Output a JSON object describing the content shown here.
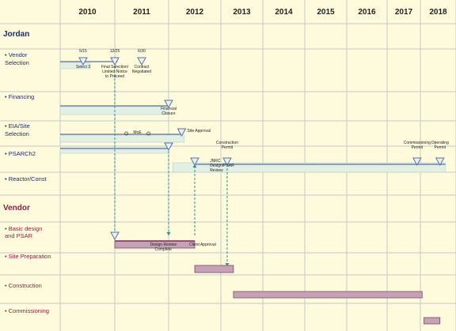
{
  "chart_data": {
    "type": "gantt",
    "title": "",
    "years": [
      "2010",
      "2011",
      "2012",
      "2013",
      "2014",
      "2015",
      "2016",
      "2017",
      "2018"
    ],
    "x_range": [
      2009.0,
      2018.7
    ],
    "colors": {
      "background": "#fdfbdc",
      "grid": "#c8c8c8",
      "jordan_section": "#1f2a6b",
      "vendor_section": "#8b2046",
      "jordan_bar_fill": "#e2f0e4",
      "milestone_line": "#5a6fa8",
      "vendor_bar_fill": "#c7a2b7",
      "dashed_link": "#2f8f8f"
    },
    "sections": [
      {
        "name": "Jordan",
        "rows": [
          {
            "label": [
              "• Vendor",
              "Selection"
            ],
            "bars": [
              {
                "start": 2009.0,
                "end": 2010.55
              }
            ],
            "line": {
              "start": 2009.0,
              "end": 2011.05
            },
            "milestones": [
              {
                "x": 2010.42,
                "above": [
                  "5/15"
                ],
                "below": [
                  "Select 3"
                ]
              },
              {
                "x": 2011.0,
                "above": [
                  "12/25"
                ],
                "below": [
                  "Final Selection/",
                  "Limited Notice",
                  "to Proceed"
                ]
              },
              {
                "x": 2011.5,
                "above": [
                  "6/30"
                ],
                "below": [
                  "Contract",
                  "Negotiated"
                ]
              }
            ]
          },
          {
            "label": [
              "• Financing"
            ],
            "bars": [
              {
                "start": 2009.0,
                "end": 2012.0
              }
            ],
            "line": {
              "start": 2009.0,
              "end": 2012.0
            },
            "milestones": [
              {
                "x": 2012.0,
                "above": [],
                "below": [
                  "Financial",
                  "Closure"
                ]
              }
            ]
          },
          {
            "label": [
              "• EIA/Site",
              "Selection"
            ],
            "bars": [
              {
                "start": 2009.0,
                "end": 2012.3
              }
            ],
            "line": {
              "start": 2009.0,
              "end": 2012.25
            },
            "moe_at": 2011.42,
            "moe_label": "MoE",
            "milestones": [
              {
                "x": 2012.25,
                "above": [],
                "right": [
                  "Site Approval"
                ]
              }
            ]
          },
          {
            "label": [
              "• PSARCh2"
            ],
            "bars": [
              {
                "start": 2009.0,
                "end": 2012.0
              }
            ],
            "line": {
              "start": 2009.0,
              "end": 2012.0
            },
            "milestones": [
              {
                "x": 2012.0,
                "above": [],
                "below": []
              }
            ]
          },
          {
            "label": [
              "• Reactor/Const"
            ],
            "bars": [
              {
                "start": 2012.08,
                "end": 2018.7
              }
            ],
            "line": {
              "start": 2012.5,
              "end": 2018.7
            },
            "milestones": [
              {
                "x": 2012.5,
                "above": [],
                "below": []
              },
              {
                "x": 2013.15,
                "above": [
                  "Construction",
                  "Permit"
                ],
                "below": []
              },
              {
                "x": 2017.9,
                "above": [
                  "Commissioning",
                  "Permit"
                ],
                "below": []
              },
              {
                "x": 2018.55,
                "above": [
                  "Operating",
                  "Permit"
                ],
                "below": []
              }
            ],
            "note_lines": [
              "JNRC",
              "Design/PSAR",
              "Review"
            ],
            "note_at": 2012.7
          }
        ]
      },
      {
        "name": "Vendor",
        "rows": [
          {
            "label": [
              "• Basic design",
              "and PSAR"
            ],
            "bars": [
              {
                "start": 2011.0,
                "end": 2012.5
              }
            ],
            "line": {
              "start": 2011.0,
              "end": 2012.5
            },
            "milestones": [
              {
                "x": 2011.0,
                "above": [],
                "below": []
              }
            ],
            "end_labels": [
              {
                "x": 2011.9,
                "lines": [
                  "Design Review",
                  "Complete"
                ]
              },
              {
                "x": 2012.65,
                "lines": [
                  "Client Approval"
                ]
              }
            ]
          },
          {
            "label": [
              "• Site Preparation"
            ],
            "bars": [
              {
                "start": 2012.5,
                "end": 2013.3
              }
            ]
          },
          {
            "label": [
              "• Construction"
            ],
            "bars": [
              {
                "start": 2013.3,
                "end": 2018.05
              }
            ]
          },
          {
            "label": [
              "• Commissioning"
            ],
            "bars": [
              {
                "start": 2018.1,
                "end": 2018.55
              }
            ]
          }
        ]
      }
    ],
    "dependency_links": [
      {
        "x": 2011.0,
        "from_row": "• Vendor",
        "to_row": "• Basic design"
      },
      {
        "x": 2012.0,
        "from_row": "• PSARCh2",
        "to_row": "• Basic design"
      },
      {
        "x": 2012.5,
        "from_row": "• Basic design",
        "to_row": "• Reactor/Const"
      },
      {
        "x": 2013.15,
        "from_row": "• Reactor/Const",
        "to_row": "• Site Preparation"
      }
    ]
  }
}
